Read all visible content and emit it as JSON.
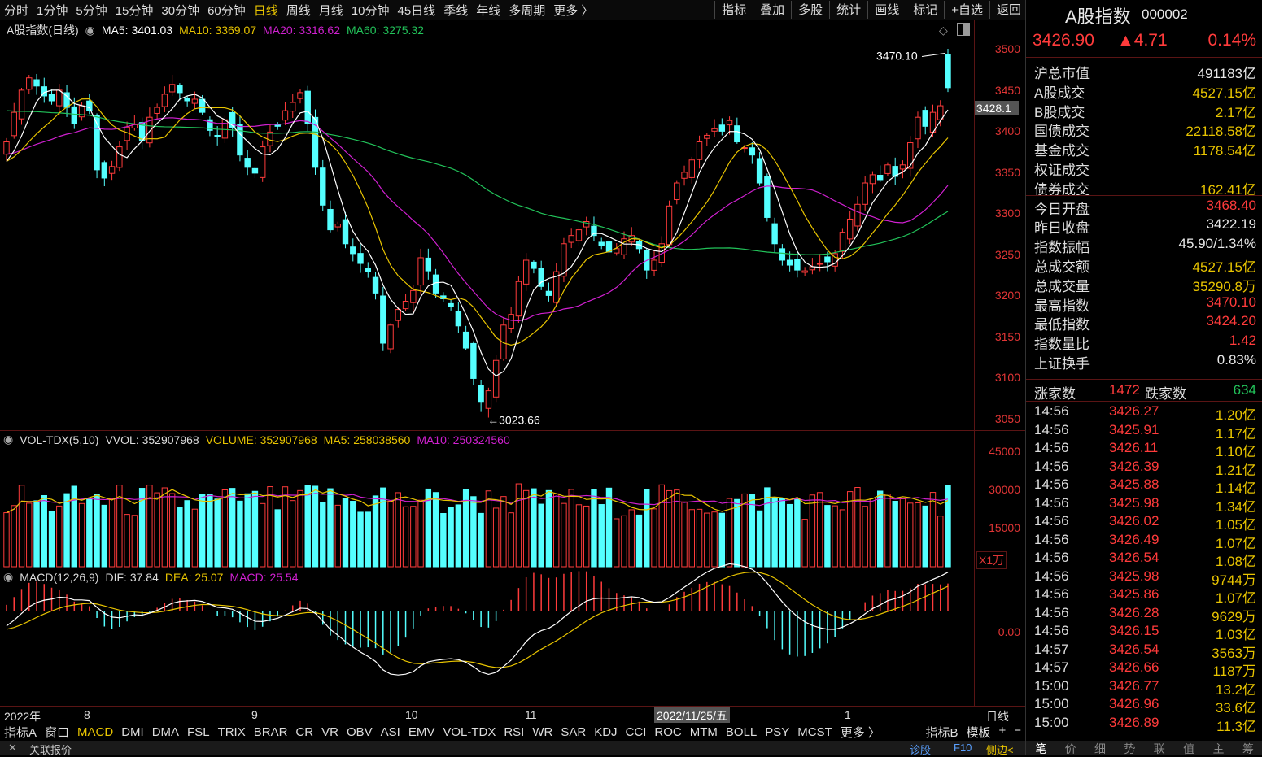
{
  "toolbar": {
    "periods": [
      "分时",
      "1分钟",
      "5分钟",
      "15分钟",
      "30分钟",
      "60分钟",
      "日线",
      "周线",
      "月线",
      "10分钟",
      "45日线",
      "季线",
      "年线",
      "多周期",
      "更多 〉"
    ],
    "active_period": "日线",
    "right_items": [
      "指标",
      "叠加",
      "多股",
      "统计",
      "画线",
      "标记",
      "+自选",
      "返回"
    ]
  },
  "main_legend": {
    "title": "A股指数(日线)",
    "ma5": "MA5: 3401.03",
    "ma10": "MA10: 3369.07",
    "ma20": "MA20: 3316.62",
    "ma60": "MA60: 3275.32"
  },
  "vol_legend": {
    "title": "VOL-TDX(5,10)",
    "vvol": "VVOL: 352907968",
    "volume": "VOLUME: 352907968",
    "ma5": "MA5: 258038560",
    "ma10": "MA10: 250324560"
  },
  "macd_legend": {
    "title": "MACD(12,26,9)",
    "dif": "DIF: 37.84",
    "dea": "DEA: 25.07",
    "macd": "MACD: 25.54"
  },
  "price_axis": [
    "3500",
    "3450",
    "3400",
    "3350",
    "3300",
    "3250",
    "3200",
    "3150",
    "3100",
    "3050"
  ],
  "current_price_tag": "3428.1",
  "vol_axis": [
    "45000",
    "30000",
    "15000"
  ],
  "vol_unit": "X1万",
  "macd_axis": "0.00",
  "annotations": {
    "high": "3470.10",
    "low": "3023.66"
  },
  "date_axis": {
    "labels": [
      "2022年",
      "8",
      "9",
      "10",
      "11",
      "1"
    ],
    "cursor_date": "2022/11/25/五",
    "period": "日线"
  },
  "bottom_tabs": {
    "left": [
      "指标A",
      "窗口"
    ],
    "indicators": [
      "MACD",
      "DMI",
      "DMA",
      "FSL",
      "TRIX",
      "BRAR",
      "CR",
      "VR",
      "OBV",
      "ASI",
      "EMV",
      "VOL-TDX",
      "RSI",
      "WR",
      "SAR",
      "KDJ",
      "CCI",
      "ROC",
      "MTM",
      "BOLL",
      "PSY",
      "MCST",
      "更多 〉"
    ],
    "active": "MACD",
    "right": [
      "指标B",
      "模板",
      "+",
      "−"
    ]
  },
  "status": {
    "left": "关联报价",
    "right": [
      "诊股",
      "F10",
      "侧边<"
    ]
  },
  "quote": {
    "name": "A股指数",
    "code": "000002",
    "price": "3426.90",
    "change": "▲4.71",
    "pct": "0.14%",
    "stats": [
      {
        "k": "沪总市值",
        "v": "491183亿",
        "c": "wht"
      },
      {
        "k": "A股成交",
        "v": "4527.15亿",
        "c": "yel"
      },
      {
        "k": "B股成交",
        "v": "2.17亿",
        "c": "yel"
      },
      {
        "k": "国债成交",
        "v": "22118.58亿",
        "c": "yel"
      },
      {
        "k": "基金成交",
        "v": "1178.54亿",
        "c": "yel"
      },
      {
        "k": "权证成交",
        "v": "",
        "c": "yel"
      },
      {
        "k": "债券成交",
        "v": "162.41亿",
        "c": "yel"
      },
      {
        "k": "今日开盘",
        "v": "3468.40",
        "c": "red"
      },
      {
        "k": "昨日收盘",
        "v": "3422.19",
        "c": "wht"
      },
      {
        "k": "指数振幅",
        "v": "45.90/1.34%",
        "c": "wht"
      },
      {
        "k": "总成交额",
        "v": "4527.15亿",
        "c": "yel"
      },
      {
        "k": "总成交量",
        "v": "35290.8万",
        "c": "yel"
      },
      {
        "k": "最高指数",
        "v": "3470.10",
        "c": "red"
      },
      {
        "k": "最低指数",
        "v": "3424.20",
        "c": "red"
      },
      {
        "k": "指数量比",
        "v": "1.42",
        "c": "red"
      },
      {
        "k": "上证换手",
        "v": "0.83%",
        "c": "wht"
      }
    ],
    "up_label": "涨家数",
    "up": "1472",
    "down_label": "跌家数",
    "down": "634",
    "ticks": [
      [
        "14:56",
        "3426.27",
        "1.20亿"
      ],
      [
        "14:56",
        "3425.91",
        "1.17亿"
      ],
      [
        "14:56",
        "3426.11",
        "1.10亿"
      ],
      [
        "14:56",
        "3426.39",
        "1.21亿"
      ],
      [
        "14:56",
        "3425.88",
        "1.14亿"
      ],
      [
        "14:56",
        "3425.98",
        "1.34亿"
      ],
      [
        "14:56",
        "3426.02",
        "1.05亿"
      ],
      [
        "14:56",
        "3426.49",
        "1.07亿"
      ],
      [
        "14:56",
        "3426.54",
        "1.08亿"
      ],
      [
        "14:56",
        "3425.98",
        "9744万"
      ],
      [
        "14:56",
        "3425.86",
        "1.07亿"
      ],
      [
        "14:56",
        "3426.28",
        "9629万"
      ],
      [
        "14:56",
        "3426.15",
        "1.03亿"
      ],
      [
        "14:57",
        "3426.54",
        "3563万"
      ],
      [
        "14:57",
        "3426.66",
        "1187万"
      ],
      [
        "15:00",
        "3426.77",
        "13.2亿"
      ],
      [
        "15:00",
        "3426.96",
        "33.6亿"
      ],
      [
        "15:00",
        "3426.89",
        "11.3亿"
      ]
    ],
    "bottom_tabs": [
      "笔",
      "价",
      "细",
      "势",
      "联",
      "值",
      "主",
      "筹"
    ]
  },
  "colors": {
    "up": "#ff3b3b",
    "down": "#54ffff",
    "ma5": "#ffffff",
    "ma10": "#e8c400",
    "ma20": "#d020d0",
    "ma60": "#22c35a"
  },
  "chart_data": {
    "type": "candlestick",
    "ylim": [
      3020,
      3510
    ],
    "closes": [
      3362,
      3398,
      3425,
      3440,
      3430,
      3418,
      3412,
      3425,
      3404,
      3384,
      3406,
      3400,
      3328,
      3318,
      3332,
      3356,
      3380,
      3383,
      3364,
      3392,
      3404,
      3420,
      3432,
      3422,
      3412,
      3414,
      3398,
      3376,
      3368,
      3389,
      3379,
      3346,
      3331,
      3324,
      3356,
      3374,
      3381,
      3400,
      3410,
      3422,
      3384,
      3331,
      3285,
      3255,
      3262,
      3238,
      3226,
      3214,
      3204,
      3178,
      3117,
      3139,
      3158,
      3168,
      3181,
      3221,
      3205,
      3178,
      3171,
      3162,
      3138,
      3111,
      3074,
      3045,
      3059,
      3096,
      3139,
      3152,
      3192,
      3218,
      3208,
      3186,
      3175,
      3204,
      3238,
      3248,
      3255,
      3265,
      3248,
      3236,
      3228,
      3232,
      3244,
      3248,
      3232,
      3206,
      3218,
      3238,
      3284,
      3312,
      3325,
      3340,
      3362,
      3370,
      3378,
      3375,
      3388,
      3362,
      3355,
      3346,
      3312,
      3270,
      3238,
      3218,
      3212,
      3206,
      3205,
      3210,
      3214,
      3216,
      3226,
      3252,
      3268,
      3286,
      3312,
      3322,
      3316,
      3334,
      3320,
      3334,
      3361,
      3392,
      3381,
      3398,
      3406,
      3428
    ],
    "volume_unit": "万"
  }
}
